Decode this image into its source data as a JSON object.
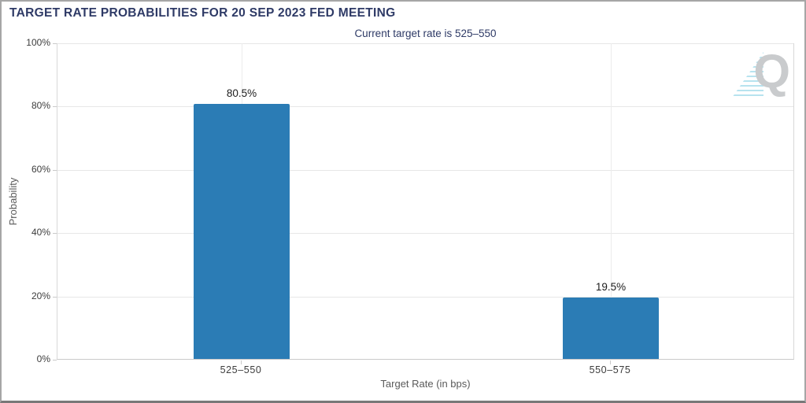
{
  "chart_data": {
    "type": "bar",
    "title": "TARGET RATE PROBABILITIES FOR 20 SEP 2023 FED MEETING",
    "subtitle": "Current target rate is 525–550",
    "categories": [
      "525–550",
      "550–575"
    ],
    "values": [
      80.5,
      19.5
    ],
    "value_labels": [
      "80.5%",
      "19.5%"
    ],
    "xlabel": "Target Rate (in bps)",
    "ylabel": "Probability",
    "ylim": [
      0,
      100
    ],
    "yticks": [
      0,
      20,
      40,
      60,
      80,
      100
    ],
    "ytick_labels": [
      "0%",
      "20%",
      "40%",
      "60%",
      "80%",
      "100%"
    ],
    "grid": true,
    "legend": false,
    "bar_color": "#2b7cb5"
  },
  "watermark": {
    "letter": "Q",
    "q_color": "#c9cbcd",
    "dash_color": "#7dcce2"
  },
  "colors": {
    "title_text": "#2e3a66",
    "tick_text": "#3d3d3d",
    "axis_title_text": "#5a5a5a",
    "gridline": "#e7e7e7",
    "bar": "#2b7cb5"
  }
}
